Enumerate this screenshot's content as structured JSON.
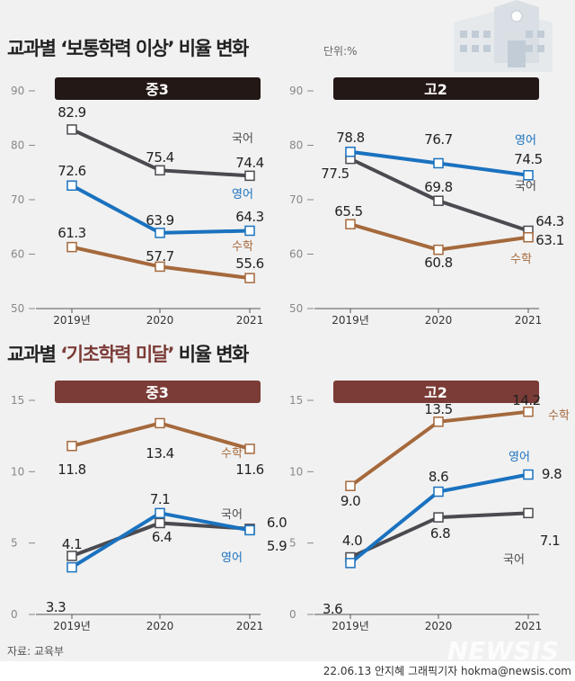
{
  "titles": {
    "top_prefix": "교과별 ",
    "top_highlight": "‘보통학력 이상’",
    "top_suffix": " 비율 변화",
    "unit": "단위:%",
    "bottom_prefix": "교과별 ",
    "bottom_highlight": "‘기초학력 미달’",
    "bottom_suffix": " 비율 변화"
  },
  "colors": {
    "korean": "#4a4a50",
    "english": "#1a72bf",
    "math": "#a5693c",
    "header_top": "#231815",
    "header_bottom": "#7b3b36",
    "highlight_bottom": "#7b3b36"
  },
  "source": "자료: 교육부",
  "credit": "22.06.13 안지혜 그래픽기자 hokma@newsis.com",
  "watermark": "NEWSIS",
  "chart_data": [
    {
      "type": "line",
      "title": "중3",
      "group": "보통학력 이상",
      "categories": [
        "2019년",
        "2020",
        "2021"
      ],
      "ylim": [
        50,
        90
      ],
      "yticks": [
        50,
        60,
        70,
        80,
        90
      ],
      "series": [
        {
          "name": "국어",
          "color": "#4a4a50",
          "values": [
            82.9,
            75.4,
            74.4
          ]
        },
        {
          "name": "영어",
          "color": "#1a72bf",
          "values": [
            72.6,
            63.9,
            64.3
          ]
        },
        {
          "name": "수학",
          "color": "#a5693c",
          "values": [
            61.3,
            57.7,
            55.6
          ]
        }
      ]
    },
    {
      "type": "line",
      "title": "고2",
      "group": "보통학력 이상",
      "categories": [
        "2019년",
        "2020",
        "2021"
      ],
      "ylim": [
        50,
        90
      ],
      "yticks": [
        50,
        60,
        70,
        80,
        90
      ],
      "series": [
        {
          "name": "국어",
          "color": "#4a4a50",
          "values": [
            77.5,
            69.8,
            64.3
          ]
        },
        {
          "name": "영어",
          "color": "#1a72bf",
          "values": [
            78.8,
            76.7,
            74.5
          ]
        },
        {
          "name": "수학",
          "color": "#a5693c",
          "values": [
            65.5,
            60.8,
            63.1
          ]
        }
      ]
    },
    {
      "type": "line",
      "title": "중3",
      "group": "기초학력 미달",
      "categories": [
        "2019년",
        "2020",
        "2021"
      ],
      "ylim": [
        0,
        15
      ],
      "yticks": [
        0,
        5,
        10,
        15
      ],
      "series": [
        {
          "name": "국어",
          "color": "#4a4a50",
          "values": [
            4.1,
            6.4,
            6.0
          ]
        },
        {
          "name": "영어",
          "color": "#1a72bf",
          "values": [
            3.3,
            7.1,
            5.9
          ]
        },
        {
          "name": "수학",
          "color": "#a5693c",
          "values": [
            11.8,
            13.4,
            11.6
          ]
        }
      ]
    },
    {
      "type": "line",
      "title": "고2",
      "group": "기초학력 미달",
      "categories": [
        "2019년",
        "2020",
        "2021"
      ],
      "ylim": [
        0,
        15
      ],
      "yticks": [
        0,
        5,
        10,
        15
      ],
      "series": [
        {
          "name": "국어",
          "color": "#4a4a50",
          "values": [
            4.0,
            6.8,
            7.1
          ]
        },
        {
          "name": "영어",
          "color": "#1a72bf",
          "values": [
            3.6,
            8.6,
            9.8
          ]
        },
        {
          "name": "수학",
          "color": "#a5693c",
          "values": [
            9.0,
            13.5,
            14.2
          ]
        }
      ]
    }
  ]
}
